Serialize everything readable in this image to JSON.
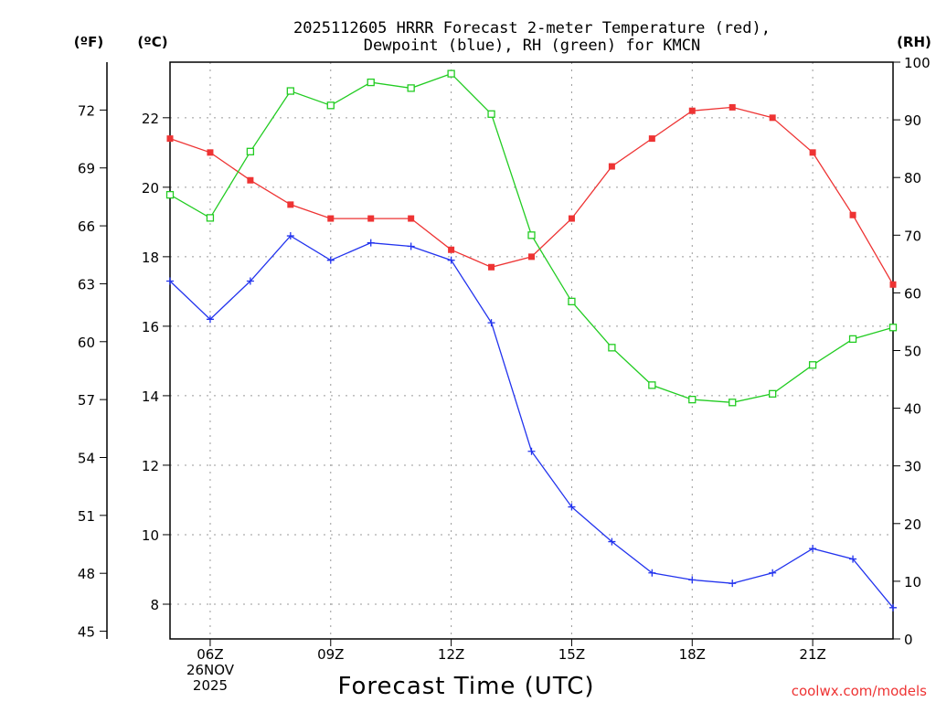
{
  "title": {
    "line1": "2025112605 HRRR Forecast 2-meter Temperature (red),",
    "line2": "Dewpoint (blue), RH (green) for KMCN"
  },
  "axis_headers": {
    "fahrenheit": "(ºF)",
    "celsius": "(ºC)",
    "rh": "(RH)"
  },
  "xlabel": "Forecast Time (UTC)",
  "date_label": {
    "line1": "26NOV",
    "line2": "2025"
  },
  "watermark": "coolwx.com/models",
  "colors": {
    "temp": "#ee3333",
    "dew": "#2233ee",
    "rh": "#22cc22",
    "grid": "#999999"
  },
  "chart_data": {
    "type": "line",
    "x": [
      5,
      6,
      7,
      8,
      9,
      10,
      11,
      12,
      13,
      14,
      15,
      16,
      17,
      18,
      19,
      20,
      21,
      22,
      23
    ],
    "x_ticks": [
      {
        "hour": 6,
        "label": "06Z"
      },
      {
        "hour": 9,
        "label": "09Z"
      },
      {
        "hour": 12,
        "label": "12Z"
      },
      {
        "hour": 15,
        "label": "15Z"
      },
      {
        "hour": 18,
        "label": "18Z"
      },
      {
        "hour": 21,
        "label": "21Z"
      }
    ],
    "xlim": [
      5,
      23
    ],
    "celsius_axis": {
      "ylim": [
        7.0,
        23.6
      ],
      "ticks": [
        "8",
        "10",
        "12",
        "14",
        "16",
        "18",
        "20",
        "22"
      ]
    },
    "fahrenheit_axis": {
      "ticks": [
        "45",
        "48",
        "51",
        "54",
        "57",
        "60",
        "63",
        "66",
        "69",
        "72"
      ]
    },
    "rh_axis": {
      "ylim": [
        0,
        100
      ],
      "ticks": [
        "0",
        "10",
        "20",
        "30",
        "40",
        "50",
        "60",
        "70",
        "80",
        "90",
        "100"
      ]
    },
    "grid": true,
    "series": [
      {
        "name": "Temperature",
        "axis": "celsius",
        "marker": "filled-square",
        "values": [
          21.4,
          21.0,
          20.2,
          19.5,
          19.1,
          19.1,
          19.1,
          18.2,
          17.7,
          18.0,
          19.1,
          20.6,
          21.4,
          22.2,
          22.3,
          22.0,
          21.0,
          19.2,
          17.2
        ]
      },
      {
        "name": "Dewpoint",
        "axis": "celsius",
        "marker": "plus",
        "values": [
          17.3,
          16.2,
          17.3,
          18.6,
          17.9,
          18.4,
          18.3,
          17.9,
          16.1,
          12.4,
          10.8,
          9.8,
          8.9,
          8.7,
          8.6,
          8.9,
          9.6,
          9.3,
          7.9
        ]
      },
      {
        "name": "RH",
        "axis": "rh",
        "marker": "open-square",
        "values": [
          77,
          73,
          84.5,
          95,
          92.5,
          96.5,
          95.5,
          98,
          91,
          70,
          58.5,
          50.5,
          44,
          41.5,
          41,
          42.5,
          47.5,
          52,
          54
        ]
      }
    ]
  }
}
